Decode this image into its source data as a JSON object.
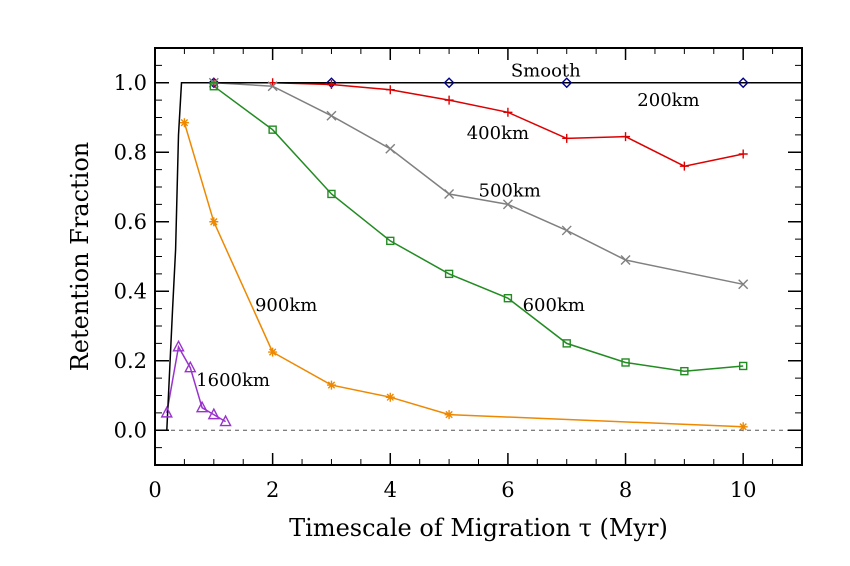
{
  "chart_data": {
    "type": "line",
    "title": "",
    "xlabel": "Timescale of Migration τ (Myr)",
    "ylabel": "Retention Fraction",
    "xlim": [
      0,
      11
    ],
    "ylim": [
      -0.1,
      1.1
    ],
    "xticks": [
      0,
      2,
      4,
      6,
      8,
      10
    ],
    "yticks": [
      0.0,
      0.2,
      0.4,
      0.6,
      0.8,
      1.0
    ],
    "xtick_labels": [
      "0",
      "2",
      "4",
      "6",
      "8",
      "10"
    ],
    "ytick_labels": [
      "0.0",
      "0.2",
      "0.4",
      "0.6",
      "0.8",
      "1.0"
    ],
    "grid": false,
    "legend": "none",
    "reference_line": {
      "y": 0.0,
      "style": "dashed"
    },
    "series": [
      {
        "name": "Smooth",
        "color": "#00008b",
        "marker": "diamond",
        "x": [
          1,
          3,
          5,
          7,
          10
        ],
        "y": [
          1.0,
          1.0,
          1.0,
          1.0,
          1.0
        ]
      },
      {
        "name": "200km",
        "color": "#dd0000",
        "marker": "plus",
        "x": [
          1,
          2,
          3,
          4,
          5,
          6,
          7,
          8,
          9,
          10
        ],
        "y": [
          1.0,
          1.0,
          0.995,
          0.98,
          0.95,
          0.915,
          0.84,
          0.845,
          0.76,
          0.795
        ]
      },
      {
        "name": "500km",
        "color": "#808080",
        "marker": "cross",
        "x": [
          1,
          2,
          3,
          4,
          5,
          6,
          7,
          8,
          10
        ],
        "y": [
          1.0,
          0.99,
          0.905,
          0.81,
          0.68,
          0.65,
          0.575,
          0.49,
          0.42
        ]
      },
      {
        "name": "600km",
        "color": "#228b22",
        "marker": "square",
        "x": [
          1,
          2,
          3,
          4,
          5,
          6,
          7,
          8,
          9,
          10
        ],
        "y": [
          0.99,
          0.865,
          0.68,
          0.545,
          0.45,
          0.38,
          0.25,
          0.195,
          0.17,
          0.185
        ]
      },
      {
        "name": "900km",
        "color": "#ee8800",
        "marker": "asterisk",
        "x": [
          0.5,
          1,
          2,
          3,
          4,
          5,
          10
        ],
        "y": [
          0.885,
          0.6,
          0.225,
          0.13,
          0.095,
          0.045,
          0.01
        ]
      },
      {
        "name": "1600km",
        "color": "#9933cc",
        "marker": "triangle",
        "x": [
          0.2,
          0.4,
          0.6,
          0.8,
          1.0,
          1.2
        ],
        "y": [
          0.05,
          0.24,
          0.18,
          0.065,
          0.045,
          0.025
        ]
      },
      {
        "name": "",
        "color": "#000000",
        "marker": "none",
        "x": [
          0.2,
          0.3,
          0.35,
          0.4,
          0.45,
          11
        ],
        "y": [
          0.0,
          0.35,
          0.52,
          0.85,
          1.0,
          1.0
        ]
      }
    ],
    "annotations": [
      {
        "text": "Smooth",
        "x": 6.05,
        "y": 1.035
      },
      {
        "text": "200km",
        "x": 8.2,
        "y": 0.95
      },
      {
        "text": "400km",
        "x": 5.3,
        "y": 0.855
      },
      {
        "text": "500km",
        "x": 5.5,
        "y": 0.69
      },
      {
        "text": "600km",
        "x": 6.25,
        "y": 0.36
      },
      {
        "text": "900km",
        "x": 1.7,
        "y": 0.36
      },
      {
        "text": "1600km",
        "x": 0.7,
        "y": 0.145
      }
    ]
  }
}
